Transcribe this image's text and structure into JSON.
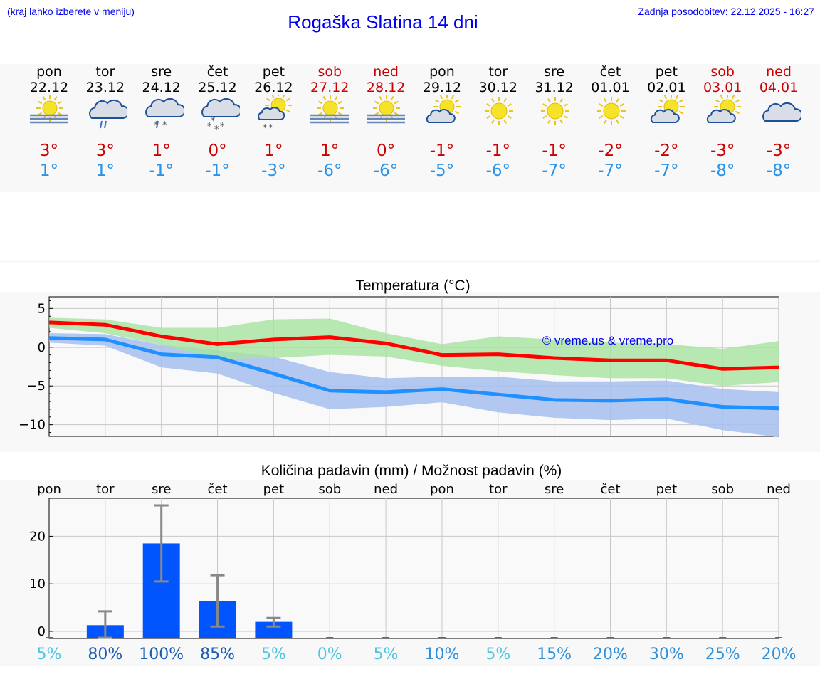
{
  "header": {
    "hint": "(kraj lahko izberete v meniju)",
    "title": "Rogaška Slatina 14 dni",
    "updated": "Zadnja posodobitev: 22.12.2025 - 16:27"
  },
  "colors": {
    "link": "#0000ee",
    "max_line": "#ff0000",
    "min_line": "#1e90ff",
    "max_band": "#a8e4a0",
    "min_band": "#a6bff0",
    "bar": "#0055ff",
    "weekend": "#cc0000"
  },
  "days": [
    {
      "name": "pon",
      "date": "22.12",
      "icon": "sun-fog-icon",
      "max": "3°",
      "min": "1°",
      "weekend": false
    },
    {
      "name": "tor",
      "date": "23.12",
      "icon": "cloud-rain-icon",
      "max": "3°",
      "min": "1°",
      "weekend": false
    },
    {
      "name": "sre",
      "date": "24.12",
      "icon": "cloud-sleet-icon",
      "max": "1°",
      "min": "-1°",
      "weekend": false
    },
    {
      "name": "čet",
      "date": "25.12",
      "icon": "cloud-snow-icon",
      "max": "0°",
      "min": "-1°",
      "weekend": false
    },
    {
      "name": "pet",
      "date": "26.12",
      "icon": "sun-cloud-snow-icon",
      "max": "1°",
      "min": "-3°",
      "weekend": false
    },
    {
      "name": "sob",
      "date": "27.12",
      "icon": "sun-fog-icon",
      "max": "1°",
      "min": "-6°",
      "weekend": true
    },
    {
      "name": "ned",
      "date": "28.12",
      "icon": "sun-fog-icon",
      "max": "0°",
      "min": "-6°",
      "weekend": true
    },
    {
      "name": "pon",
      "date": "29.12",
      "icon": "sun-cloud-icon",
      "max": "-1°",
      "min": "-5°",
      "weekend": false
    },
    {
      "name": "tor",
      "date": "30.12",
      "icon": "sun-icon",
      "max": "-1°",
      "min": "-6°",
      "weekend": false
    },
    {
      "name": "sre",
      "date": "31.12",
      "icon": "sun-icon",
      "max": "-1°",
      "min": "-7°",
      "weekend": false
    },
    {
      "name": "čet",
      "date": "01.01",
      "icon": "sun-icon",
      "max": "-2°",
      "min": "-7°",
      "weekend": false
    },
    {
      "name": "pet",
      "date": "02.01",
      "icon": "sun-cloud-icon",
      "max": "-2°",
      "min": "-7°",
      "weekend": false
    },
    {
      "name": "sob",
      "date": "03.01",
      "icon": "sun-cloud-icon",
      "max": "-3°",
      "min": "-8°",
      "weekend": true
    },
    {
      "name": "ned",
      "date": "04.01",
      "icon": "cloud-icon",
      "max": "-3°",
      "min": "-8°",
      "weekend": true
    }
  ],
  "chart_data": [
    {
      "type": "line",
      "title": "Temperatura (°C)",
      "x": [
        0,
        1,
        2,
        3,
        4,
        5,
        6,
        7,
        8,
        9,
        10,
        11,
        12,
        13
      ],
      "ylim": [
        -11.5,
        6.5
      ],
      "yticks": [
        5,
        0,
        -5,
        -10
      ],
      "ytick_labels": [
        "5",
        "0",
        "−5",
        "−10"
      ],
      "grid": true,
      "watermark": "© vreme.us & vreme.pro",
      "series": [
        {
          "name": "max",
          "values": [
            3.2,
            2.9,
            1.4,
            0.4,
            1.0,
            1.3,
            0.5,
            -1.0,
            -0.9,
            -1.4,
            -1.7,
            -1.7,
            -2.8,
            -2.6
          ]
        },
        {
          "name": "min",
          "values": [
            1.2,
            1.0,
            -0.9,
            -1.3,
            -3.4,
            -5.6,
            -5.8,
            -5.4,
            -6.1,
            -6.8,
            -6.9,
            -6.7,
            -7.7,
            -7.9
          ]
        },
        {
          "name": "max_range",
          "lower": [
            2.5,
            1.8,
            0.3,
            -1.5,
            -1.4,
            -1.0,
            -1.2,
            -2.4,
            -3.1,
            -3.6,
            -4.0,
            -4.0,
            -5.0,
            -4.5
          ],
          "upper": [
            3.8,
            3.6,
            2.5,
            2.5,
            3.6,
            3.7,
            1.8,
            0.4,
            1.4,
            1.0,
            0.6,
            0.4,
            -0.2,
            0.8
          ]
        },
        {
          "name": "min_range",
          "lower": [
            0.6,
            0.2,
            -2.6,
            -3.4,
            -5.9,
            -8.0,
            -7.7,
            -7.1,
            -8.4,
            -9.1,
            -9.4,
            -9.2,
            -10.7,
            -11.6
          ],
          "upper": [
            1.8,
            1.7,
            0.3,
            -0.4,
            -1.2,
            -3.2,
            -4.0,
            -3.8,
            -3.8,
            -4.4,
            -4.4,
            -4.3,
            -5.4,
            -5.8
          ]
        }
      ]
    },
    {
      "type": "bar",
      "title": "Količina padavin (mm) / Možnost padavin (%)",
      "categories": [
        "pon",
        "tor",
        "sre",
        "čet",
        "pet",
        "sob",
        "ned",
        "pon",
        "tor",
        "sre",
        "čet",
        "pet",
        "sob",
        "ned"
      ],
      "values": [
        0,
        1.3,
        18.5,
        6.3,
        2.0,
        0,
        0,
        0,
        0,
        0,
        0,
        0,
        0,
        0
      ],
      "error_low": [
        0,
        0,
        10.5,
        1.0,
        1.0,
        0,
        0,
        0,
        0,
        0,
        0,
        0,
        0,
        0
      ],
      "error_high": [
        0,
        4.2,
        26.5,
        11.8,
        2.8,
        0,
        0,
        0,
        0,
        0,
        0,
        0,
        0,
        0
      ],
      "probability": [
        "5%",
        "80%",
        "100%",
        "85%",
        "5%",
        "0%",
        "5%",
        "10%",
        "5%",
        "15%",
        "20%",
        "30%",
        "25%",
        "20%"
      ],
      "probability_values": [
        5,
        80,
        100,
        85,
        5,
        0,
        5,
        10,
        5,
        15,
        20,
        30,
        25,
        20
      ],
      "ylim": [
        -1.5,
        28
      ],
      "yticks": [
        20,
        10,
        0
      ],
      "ytick_labels": [
        "20",
        "10",
        "0"
      ],
      "grid": true
    }
  ]
}
